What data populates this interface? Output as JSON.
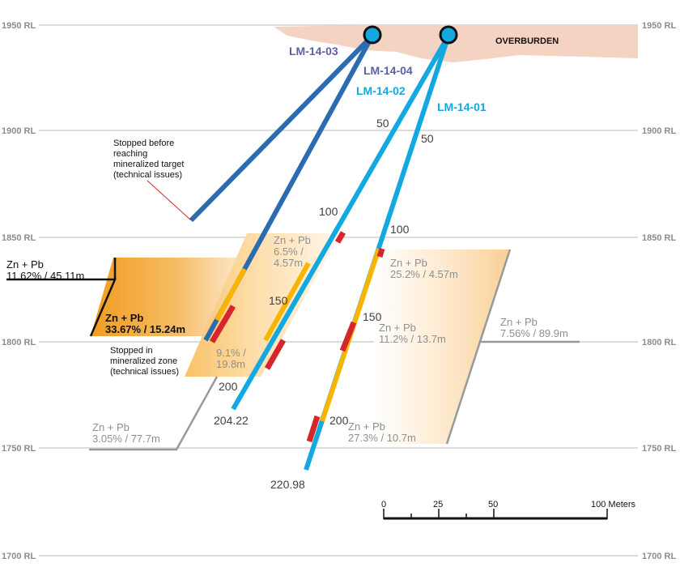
{
  "colors": {
    "dark_blue_hole": "#2b6cb0",
    "light_blue_hole": "#14a8e0",
    "overburden": "#f5d3c3",
    "zone_orange": "#f29c1f",
    "intercept_red": "#d7262b",
    "intercept_yellow": "#f7b500",
    "grid": "#d0d0d0",
    "label_purple": "#5a5fa8"
  },
  "rl_levels": [
    "1950 RL",
    "1900 RL",
    "1850 RL",
    "1800 RL",
    "1750 RL",
    "1700 RL"
  ],
  "overburden_label": "OVERBURDEN",
  "holes": [
    {
      "id": "LM-14-03",
      "label": "LM-14-03"
    },
    {
      "id": "LM-14-04",
      "label": "LM-14-04"
    },
    {
      "id": "LM-14-02",
      "label": "LM-14-02"
    },
    {
      "id": "LM-14-01",
      "label": "LM-14-01"
    }
  ],
  "depth_marks": {
    "hole02": [
      "50",
      "100",
      "150",
      "200"
    ],
    "hole01": [
      "50",
      "100",
      "150",
      "200"
    ],
    "end_02": "204.22",
    "end_01": "220.98"
  },
  "notes": {
    "stopped_before": [
      "Stopped before",
      "reaching",
      "mineralized target",
      "(technical issues)"
    ],
    "stopped_in": [
      "Stopped in",
      "mineralized zone",
      "(technical issues)"
    ]
  },
  "assays": {
    "left_title": "Zn + Pb",
    "left_value": "11.62% / 45.11m",
    "left_inner_title": "Zn + Pb",
    "left_inner_value": "33.67% / 15.24m",
    "mid_title": "Zn + Pb",
    "mid_value_1": "6.5% /",
    "mid_value_2": "4.57m",
    "mid_lower_1": "9.1% /",
    "mid_lower_2": "19.8m",
    "bottom_left_title": "Zn + Pb",
    "bottom_left_value": "3.05% / 77.7m",
    "r1_title": "Zn + Pb",
    "r1_value": "25.2% / 4.57m",
    "r2_title": "Zn + Pb",
    "r2_value": "11.2% / 13.7m",
    "r3_title": "Zn + Pb",
    "r3_value": "27.3% / 10.7m",
    "far_right_title": "Zn + Pb",
    "far_right_value": "7.56% / 89.9m"
  },
  "scale_bar": {
    "ticks": [
      "0",
      "25",
      "50",
      "100 Meters"
    ]
  }
}
